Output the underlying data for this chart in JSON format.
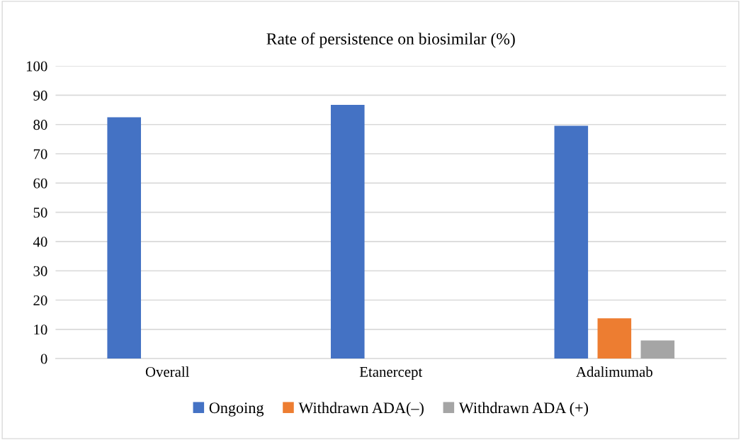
{
  "chart_data": {
    "type": "bar",
    "title": "Rate of persistence on biosimilar (%)",
    "categories": [
      "Overall",
      "Etanercept",
      "Adalimumab"
    ],
    "series": [
      {
        "name": "Ongoing",
        "color": "#4472c4",
        "values": [
          82.5,
          86.7,
          79.6
        ]
      },
      {
        "name": "Withdrawn ADA(–)",
        "color": "#ed7d31",
        "values": [
          null,
          null,
          13.8
        ]
      },
      {
        "name": "Withdrawn ADA (+)",
        "color": "#a5a5a5",
        "values": [
          null,
          null,
          6.2
        ]
      }
    ],
    "ylim": [
      0,
      100
    ],
    "yticks": [
      0,
      10,
      20,
      30,
      40,
      50,
      60,
      70,
      80,
      90,
      100
    ],
    "grid": "y",
    "legend": "bottom"
  }
}
